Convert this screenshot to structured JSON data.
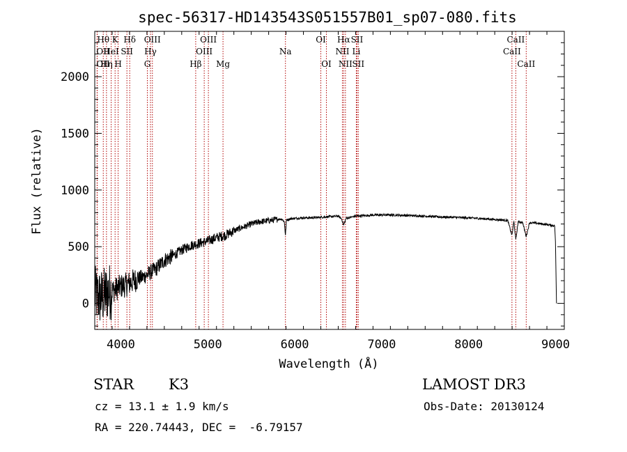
{
  "chart_data": {
    "type": "line",
    "title": "spec-56317-HD143543S051557B01_sp07-080.fits",
    "xlabel": "Wavelength (Å)",
    "ylabel": "Flux (relative)",
    "xlim": [
      3700,
      9100
    ],
    "ylim": [
      -230,
      2400
    ],
    "xticks": [
      4000,
      5000,
      6000,
      7000,
      8000,
      9000
    ],
    "yticks": [
      0,
      500,
      1000,
      1500,
      2000
    ],
    "series": [
      {
        "name": "spectrum",
        "x": [
          3700,
          3750,
          3800,
          3850,
          3900,
          3950,
          4000,
          4050,
          4100,
          4150,
          4200,
          4250,
          4300,
          4350,
          4400,
          4500,
          4600,
          4700,
          4800,
          4900,
          5000,
          5100,
          5200,
          5300,
          5400,
          5500,
          5600,
          5700,
          5800,
          5850,
          5880,
          5893,
          5905,
          5950,
          6000,
          6100,
          6200,
          6300,
          6400,
          6500,
          6540,
          6563,
          6590,
          6650,
          6700,
          6800,
          6900,
          7000,
          7100,
          7200,
          7300,
          7400,
          7500,
          7600,
          7700,
          7800,
          7900,
          8000,
          8100,
          8200,
          8300,
          8400,
          8450,
          8498,
          8520,
          8542,
          8570,
          8620,
          8662,
          8700,
          8750,
          8800,
          8850,
          8900,
          8950,
          8990,
          9000,
          9010
        ],
        "y": [
          80,
          50,
          60,
          100,
          110,
          130,
          150,
          160,
          180,
          200,
          220,
          230,
          250,
          280,
          300,
          380,
          420,
          470,
          510,
          530,
          550,
          580,
          600,
          640,
          670,
          700,
          720,
          730,
          740,
          745,
          720,
          600,
          735,
          745,
          750,
          755,
          755,
          760,
          765,
          770,
          745,
          690,
          750,
          760,
          770,
          775,
          778,
          780,
          780,
          778,
          775,
          772,
          770,
          765,
          762,
          760,
          757,
          755,
          750,
          745,
          740,
          735,
          730,
          600,
          725,
          560,
          720,
          715,
          590,
          712,
          710,
          705,
          700,
          695,
          690,
          685,
          500,
          0
        ]
      }
    ],
    "lines": [
      {
        "label": "Hθ",
        "x": 3798,
        "row": 1
      },
      {
        "label": "OII",
        "x": 3727,
        "row": 2
      },
      {
        "label": "OII",
        "x": 3729,
        "row": 3
      },
      {
        "label": "Hη",
        "x": 3835,
        "row": 3
      },
      {
        "label": "K",
        "x": 3934,
        "row": 1
      },
      {
        "label": "HeI",
        "x": 3889,
        "row": 2
      },
      {
        "label": "H",
        "x": 3969,
        "row": 3
      },
      {
        "label": "SII",
        "x": 4070,
        "row": 2
      },
      {
        "label": "Hδ",
        "x": 4102,
        "row": 1
      },
      {
        "label": "OIII",
        "x": 4363,
        "row": 1
      },
      {
        "label": "Hγ",
        "x": 4341,
        "row": 2
      },
      {
        "label": "G",
        "x": 4305,
        "row": 3
      },
      {
        "label": "Hβ",
        "x": 4861,
        "row": 3
      },
      {
        "label": "OIII",
        "x": 5007,
        "row": 1
      },
      {
        "label": "OIII",
        "x": 4959,
        "row": 2
      },
      {
        "label": "Mg",
        "x": 5175,
        "row": 3
      },
      {
        "label": "Na",
        "x": 5893,
        "row": 2
      },
      {
        "label": "OI",
        "x": 6300,
        "row": 1
      },
      {
        "label": "OI",
        "x": 6364,
        "row": 3
      },
      {
        "label": "Hα",
        "x": 6563,
        "row": 1
      },
      {
        "label": "NII",
        "x": 6548,
        "row": 2
      },
      {
        "label": "NII",
        "x": 6583,
        "row": 3
      },
      {
        "label": "SII",
        "x": 6716,
        "row": 1
      },
      {
        "label": "Li",
        "x": 6708,
        "row": 2
      },
      {
        "label": "SII",
        "x": 6731,
        "row": 3
      },
      {
        "label": "CaII",
        "x": 8542,
        "row": 1
      },
      {
        "label": "CaII",
        "x": 8498,
        "row": 2
      },
      {
        "label": "CaII",
        "x": 8662,
        "row": 3
      }
    ]
  },
  "info": {
    "class": "STAR",
    "subclass": "K3",
    "survey": "LAMOST DR3",
    "cz": "cz = 13.1 ± 1.9 km/s",
    "obs_date": "Obs-Date: 20130124",
    "coords": "RA = 220.74443, DEC =  -6.79157"
  }
}
